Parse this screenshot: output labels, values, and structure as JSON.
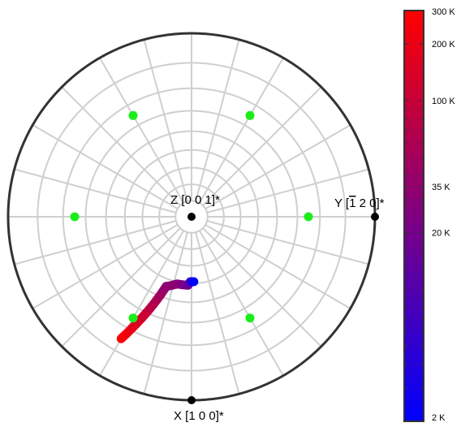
{
  "chart_data": {
    "type": "scatter",
    "projection": "stereographic polar plot",
    "grid": true,
    "axes": {
      "z": {
        "label": "Z [0 0 1]*"
      },
      "y": {
        "label_prefix": "Y [",
        "bar_digit": "1",
        "label_suffix": " 2 0]*"
      },
      "x": {
        "label": "X [1 0 0]*"
      }
    },
    "marker_colors": {
      "axis_point": "#000000",
      "symmetry_point": "#1aee1a",
      "frame": "#333333",
      "grid": "#cfcfcf"
    },
    "symmetry_points": [
      {
        "azimuth_deg": 0,
        "polar_deg": 65
      },
      {
        "azimuth_deg": 60,
        "polar_deg": 65
      },
      {
        "azimuth_deg": 120,
        "polar_deg": 65
      },
      {
        "azimuth_deg": 180,
        "polar_deg": 65
      },
      {
        "azimuth_deg": 240,
        "polar_deg": 65
      },
      {
        "azimuth_deg": 300,
        "polar_deg": 65
      }
    ],
    "trajectory": {
      "start": {
        "azimuth_deg": 120,
        "polar_deg": 75,
        "temperature_K": 300
      },
      "diag_end": {
        "azimuth_deg": 110,
        "polar_deg": 44,
        "temperature_K": 35
      },
      "curl": [
        {
          "azimuth_deg": 102,
          "polar_deg": 41,
          "temperature_K": 30
        },
        {
          "azimuth_deg": 93,
          "polar_deg": 41,
          "temperature_K": 20
        },
        {
          "azimuth_deg": 91,
          "polar_deg": 39,
          "temperature_K": 10
        },
        {
          "azimuth_deg": 88,
          "polar_deg": 39,
          "temperature_K": 2
        }
      ]
    },
    "colorbar": {
      "scale": "log",
      "range_K": [
        2,
        300
      ],
      "colors": [
        "#0000ff",
        "#ff0000"
      ],
      "tick_labels": [
        {
          "value": 300,
          "label": "300 K"
        },
        {
          "value": 200,
          "label": "200 K"
        },
        {
          "value": 100,
          "label": "100 K"
        },
        {
          "value": 35,
          "label": "35 K"
        },
        {
          "value": 20,
          "label": "20 K"
        },
        {
          "value": 2,
          "label": "2 K"
        }
      ],
      "minor_ticks": [
        3,
        4,
        5,
        6,
        7,
        8,
        9,
        10,
        30,
        40,
        50,
        60,
        70,
        80,
        90
      ]
    }
  }
}
